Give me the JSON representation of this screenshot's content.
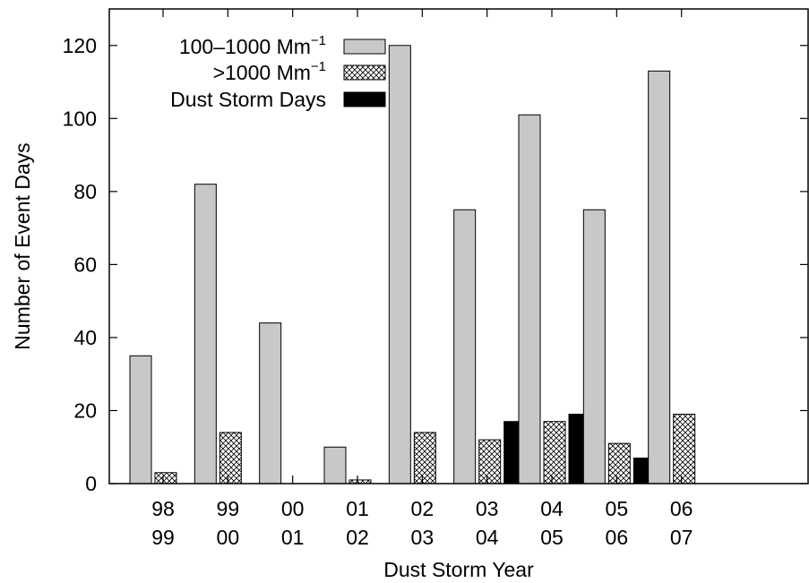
{
  "chart_data": {
    "type": "bar",
    "title": "",
    "xlabel": "Dust Storm Year",
    "ylabel": "Number of Event Days",
    "ylim": [
      0,
      130
    ],
    "yticks": [
      0,
      20,
      40,
      60,
      80,
      100,
      120
    ],
    "categories": [
      [
        "98",
        "99"
      ],
      [
        "99",
        "00"
      ],
      [
        "00",
        "01"
      ],
      [
        "01",
        "02"
      ],
      [
        "02",
        "03"
      ],
      [
        "03",
        "04"
      ],
      [
        "04",
        "05"
      ],
      [
        "05",
        "06"
      ],
      [
        "06",
        "07"
      ]
    ],
    "series": [
      {
        "name": "100–1000 Mm",
        "name_sup": "−1",
        "fill": "#c8c8c8",
        "pattern": "solid",
        "values": [
          35,
          82,
          44,
          10,
          120,
          75,
          101,
          75,
          113
        ]
      },
      {
        "name": ">1000 Mm",
        "name_sup": "−1",
        "fill": "#ffffff",
        "pattern": "crosshatch",
        "values": [
          3,
          14,
          0,
          1,
          14,
          12,
          17,
          11,
          19
        ]
      },
      {
        "name": "Dust Storm Days",
        "name_sup": "",
        "fill": "#000000",
        "pattern": "solid",
        "values": [
          0,
          0,
          0,
          0,
          0,
          17,
          19,
          7,
          0
        ]
      }
    ],
    "legend_position": "top-left",
    "grid": false
  }
}
